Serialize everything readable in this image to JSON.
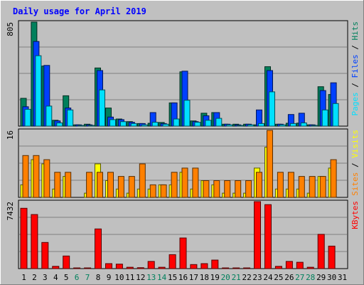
{
  "title": "Daily usage for April 2019",
  "colors": {
    "background": "#c0c0c0",
    "title": "#0000ff",
    "hits": "#00805c",
    "files": "#0040ff",
    "pages": "#00e0ff",
    "visits": "#ffff00",
    "sites": "#ff8000",
    "kbytes": "#ff0000",
    "weekend_day": "#00805c",
    "weekday": "#000000"
  },
  "chart_data": [
    {
      "type": "bar",
      "panel": "hits",
      "ymax_label": "805",
      "ylim": [
        0,
        805
      ],
      "legend": [
        "Pages",
        "Files",
        "Hits"
      ],
      "x": [
        1,
        2,
        3,
        4,
        5,
        6,
        7,
        8,
        9,
        10,
        11,
        12,
        13,
        14,
        15,
        16,
        17,
        18,
        19,
        20,
        21,
        22,
        23,
        24,
        25,
        26,
        27,
        28,
        29,
        30,
        31
      ],
      "series": [
        {
          "name": "Hits",
          "values": [
            215,
            805,
            465,
            45,
            235,
            10,
            15,
            450,
            140,
            55,
            35,
            20,
            22,
            28,
            180,
            420,
            40,
            100,
            105,
            15,
            15,
            15,
            10,
            460,
            15,
            22,
            23,
            10,
            305,
            245,
            0
          ]
        },
        {
          "name": "Files",
          "values": [
            150,
            655,
            470,
            40,
            140,
            10,
            10,
            430,
            70,
            50,
            30,
            20,
            105,
            20,
            180,
            425,
            35,
            80,
            105,
            15,
            10,
            15,
            125,
            430,
            15,
            90,
            100,
            10,
            275,
            335,
            0
          ]
        },
        {
          "name": "Pages",
          "values": [
            130,
            545,
            155,
            25,
            125,
            5,
            5,
            280,
            50,
            35,
            20,
            10,
            30,
            15,
            55,
            200,
            30,
            45,
            60,
            10,
            5,
            10,
            20,
            265,
            10,
            20,
            25,
            5,
            125,
            175,
            0
          ]
        }
      ]
    },
    {
      "type": "bar",
      "panel": "visits",
      "ymax_label": "16",
      "ylim": [
        0,
        16
      ],
      "legend": [
        "Sites",
        "Visits"
      ],
      "x": [
        1,
        2,
        3,
        4,
        5,
        6,
        7,
        8,
        9,
        10,
        11,
        12,
        13,
        14,
        15,
        16,
        17,
        18,
        19,
        20,
        21,
        22,
        23,
        24,
        25,
        26,
        27,
        28,
        29,
        30,
        31
      ],
      "series": [
        {
          "name": "Visits",
          "values": [
            3,
            9,
            8,
            2,
            5,
            0,
            1,
            8,
            4,
            2,
            1,
            2,
            2,
            3,
            3,
            6,
            2,
            4,
            3,
            1,
            1,
            1,
            7,
            12,
            2,
            2,
            2,
            1,
            5,
            7,
            0
          ]
        },
        {
          "name": "Sites",
          "values": [
            10,
            10,
            9,
            6,
            6,
            0,
            6,
            6,
            6,
            5,
            5,
            8,
            3,
            3,
            6,
            7,
            7,
            4,
            4,
            4,
            4,
            4,
            6,
            16,
            6,
            6,
            5,
            5,
            5,
            9,
            0
          ]
        }
      ]
    },
    {
      "type": "bar",
      "panel": "kbytes",
      "ymax_label": "7432",
      "ylim": [
        0,
        7432
      ],
      "legend": [
        "KBytes"
      ],
      "x": [
        1,
        2,
        3,
        4,
        5,
        6,
        7,
        8,
        9,
        10,
        11,
        12,
        13,
        14,
        15,
        16,
        17,
        18,
        19,
        20,
        21,
        22,
        23,
        24,
        25,
        26,
        27,
        28,
        29,
        30,
        31
      ],
      "series": [
        {
          "name": "KBytes",
          "values": [
            6700,
            6000,
            2900,
            250,
            1400,
            50,
            50,
            4400,
            550,
            500,
            150,
            100,
            800,
            150,
            1550,
            3400,
            450,
            550,
            950,
            50,
            50,
            50,
            7432,
            7100,
            250,
            800,
            700,
            150,
            3800,
            2500,
            0
          ]
        }
      ]
    }
  ],
  "x_labels": [
    "1",
    "2",
    "3",
    "4",
    "5",
    "6",
    "7",
    "8",
    "9",
    "10",
    "11",
    "12",
    "13",
    "14",
    "15",
    "16",
    "17",
    "18",
    "19",
    "20",
    "21",
    "22",
    "23",
    "24",
    "25",
    "26",
    "27",
    "28",
    "29",
    "30",
    "31"
  ],
  "weekend_days": [
    6,
    7,
    13,
    14,
    20,
    21,
    27,
    28
  ]
}
